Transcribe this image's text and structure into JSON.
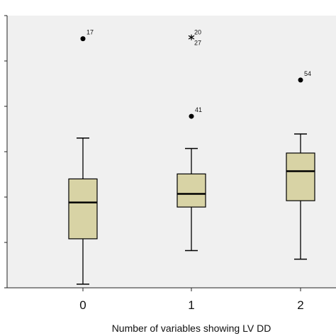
{
  "chart_data": {
    "type": "boxplot",
    "title": "",
    "xlabel": "Number of variables showing LV DD",
    "ylabel": "",
    "categories": [
      "0",
      "1",
      "2"
    ],
    "ylim": [
      0,
      6
    ],
    "y_tick_labels_visible": false,
    "grid": false,
    "box_color": "#d8d3a5",
    "plot_background": "#f0f0f0",
    "boxes": [
      {
        "category": "0",
        "whisker_low": 0.08,
        "q1": 1.08,
        "median": 1.88,
        "q3": 2.4,
        "whisker_high": 3.3,
        "outliers": [
          {
            "label": "17",
            "value": 5.49,
            "marker": "circle"
          }
        ]
      },
      {
        "category": "1",
        "whisker_low": 0.82,
        "q1": 1.78,
        "median": 2.07,
        "q3": 2.51,
        "whisker_high": 3.07,
        "outliers": [
          {
            "label": "41",
            "value": 3.78,
            "marker": "circle"
          },
          {
            "label": "20",
            "value": 5.52,
            "marker": "star"
          },
          {
            "label": "27",
            "value": 5.52,
            "marker": "star"
          }
        ]
      },
      {
        "category": "2",
        "whisker_low": 0.63,
        "q1": 1.92,
        "median": 2.57,
        "q3": 2.97,
        "whisker_high": 3.39,
        "outliers": [
          {
            "label": "54",
            "value": 4.58,
            "marker": "circle"
          }
        ]
      }
    ]
  }
}
